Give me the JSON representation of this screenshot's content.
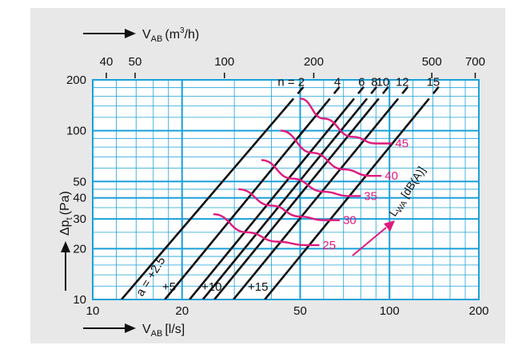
{
  "chart_data": {
    "type": "line",
    "x_axis": {
      "quantity": "V",
      "subscript": "AB",
      "unit": "[l/s]",
      "scale": "log",
      "range": [
        10,
        200
      ],
      "ticks": [
        10,
        20,
        50,
        100,
        200
      ]
    },
    "x2_axis": {
      "quantity": "V",
      "subscript": "AB",
      "unit_prefix": "(m",
      "unit_power": "3",
      "unit_suffix": "/h)",
      "scale": "log",
      "ticks": [
        40,
        50,
        100,
        200,
        500,
        700
      ]
    },
    "y_axis": {
      "quantity": "Δp",
      "subscript": "t",
      "unit": "(Pa)",
      "scale": "log",
      "range": [
        10,
        200
      ],
      "ticks": [
        10,
        20,
        30,
        40,
        50,
        100,
        200
      ]
    },
    "grid": true,
    "n_prefix": "n = ",
    "n_series": [
      {
        "label": "2",
        "points": [
          [
            47.5,
            155
          ],
          [
            12.5,
            10
          ]
        ]
      },
      {
        "label": "4",
        "points": [
          [
            63,
            155
          ],
          [
            17.5,
            10
          ]
        ]
      },
      {
        "label": "6",
        "points": [
          [
            76,
            155
          ],
          [
            21.2,
            10
          ]
        ]
      },
      {
        "label": "8",
        "points": [
          [
            84,
            155
          ],
          [
            23.5,
            10
          ]
        ]
      },
      {
        "label": "10",
        "points": [
          [
            92,
            155
          ],
          [
            25.7,
            10
          ]
        ]
      },
      {
        "label": "12",
        "points": [
          [
            107,
            155
          ],
          [
            29.8,
            10
          ]
        ]
      },
      {
        "label": "15",
        "points": [
          [
            136,
            155
          ],
          [
            38,
            10
          ]
        ]
      }
    ],
    "a_series": [
      {
        "label": "a = +2.5",
        "a": 2.5
      },
      {
        "label": "+5",
        "a": 5
      },
      {
        "label": "+10",
        "a": 10
      },
      {
        "label": "+15",
        "a": 15
      }
    ],
    "lwa_label": {
      "prefix": "L",
      "subscript": "WA",
      "suffix": " [dB(A)]"
    },
    "lwa_curves": [
      {
        "label": "45",
        "points": [
          [
            50,
            155
          ],
          [
            60,
            118
          ],
          [
            75,
            92
          ],
          [
            90,
            84
          ],
          [
            102,
            84
          ]
        ]
      },
      {
        "label": "40",
        "points": [
          [
            43,
            100
          ],
          [
            55,
            74
          ],
          [
            70,
            59
          ],
          [
            86,
            54
          ],
          [
            94,
            54
          ]
        ]
      },
      {
        "label": "35",
        "points": [
          [
            37,
            67
          ],
          [
            47,
            52
          ],
          [
            60,
            43.5
          ],
          [
            73,
            41
          ],
          [
            80,
            41
          ]
        ]
      },
      {
        "label": "30",
        "points": [
          [
            31,
            45
          ],
          [
            40,
            36
          ],
          [
            50,
            31
          ],
          [
            60,
            29.5
          ],
          [
            68,
            29.5
          ]
        ]
      },
      {
        "label": "25",
        "points": [
          [
            25.5,
            32
          ],
          [
            33,
            25
          ],
          [
            42,
            22
          ],
          [
            52,
            21
          ],
          [
            58,
            21
          ]
        ]
      }
    ]
  }
}
